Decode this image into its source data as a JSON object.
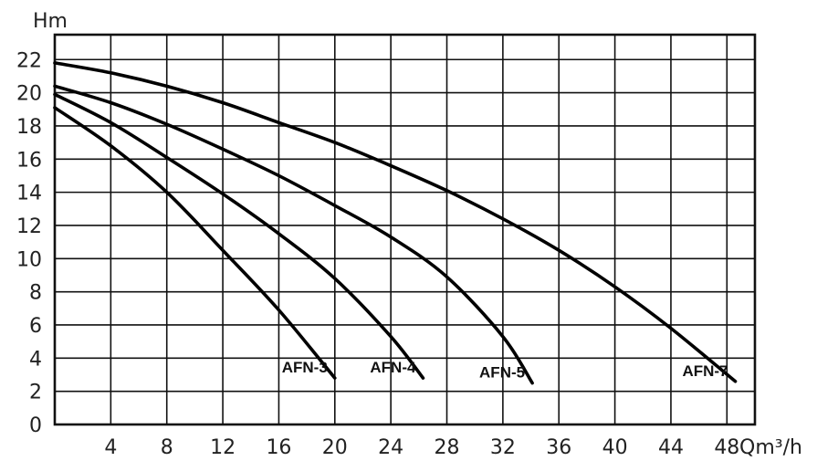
{
  "chart_data": {
    "type": "line",
    "title": "",
    "xlabel": "Qm³/h",
    "ylabel": "Hm",
    "xlim": [
      0,
      50
    ],
    "ylim": [
      0,
      23.5
    ],
    "xticks": [
      "4",
      "8",
      "12",
      "16",
      "20",
      "24",
      "28",
      "32",
      "36",
      "40",
      "44",
      "48"
    ],
    "yticks": [
      "0",
      "2",
      "4",
      "6",
      "8",
      "10",
      "12",
      "14",
      "16",
      "18",
      "20",
      "22"
    ],
    "grid": true,
    "series": [
      {
        "name": "AFN-3",
        "x": [
          0,
          4,
          8,
          12,
          16,
          20
        ],
        "y": [
          19.1,
          16.8,
          14.0,
          10.5,
          6.9,
          2.8
        ]
      },
      {
        "name": "AFN-4",
        "x": [
          0,
          4,
          8,
          12,
          16,
          20,
          24,
          26.3
        ],
        "y": [
          19.9,
          18.2,
          16.1,
          13.9,
          11.5,
          8.8,
          5.3,
          2.8
        ]
      },
      {
        "name": "AFN-5",
        "x": [
          0,
          4,
          8,
          12,
          16,
          20,
          24,
          28,
          32,
          34.1
        ],
        "y": [
          20.4,
          19.4,
          18.1,
          16.6,
          15.0,
          13.2,
          11.3,
          8.9,
          5.3,
          2.5
        ]
      },
      {
        "name": "AFN-7",
        "x": [
          0,
          4,
          8,
          12,
          16,
          20,
          24,
          28,
          32,
          36,
          40,
          44,
          48.6
        ],
        "y": [
          21.8,
          21.2,
          20.4,
          19.4,
          18.2,
          17.0,
          15.6,
          14.1,
          12.4,
          10.5,
          8.3,
          5.8,
          2.6
        ]
      }
    ]
  }
}
